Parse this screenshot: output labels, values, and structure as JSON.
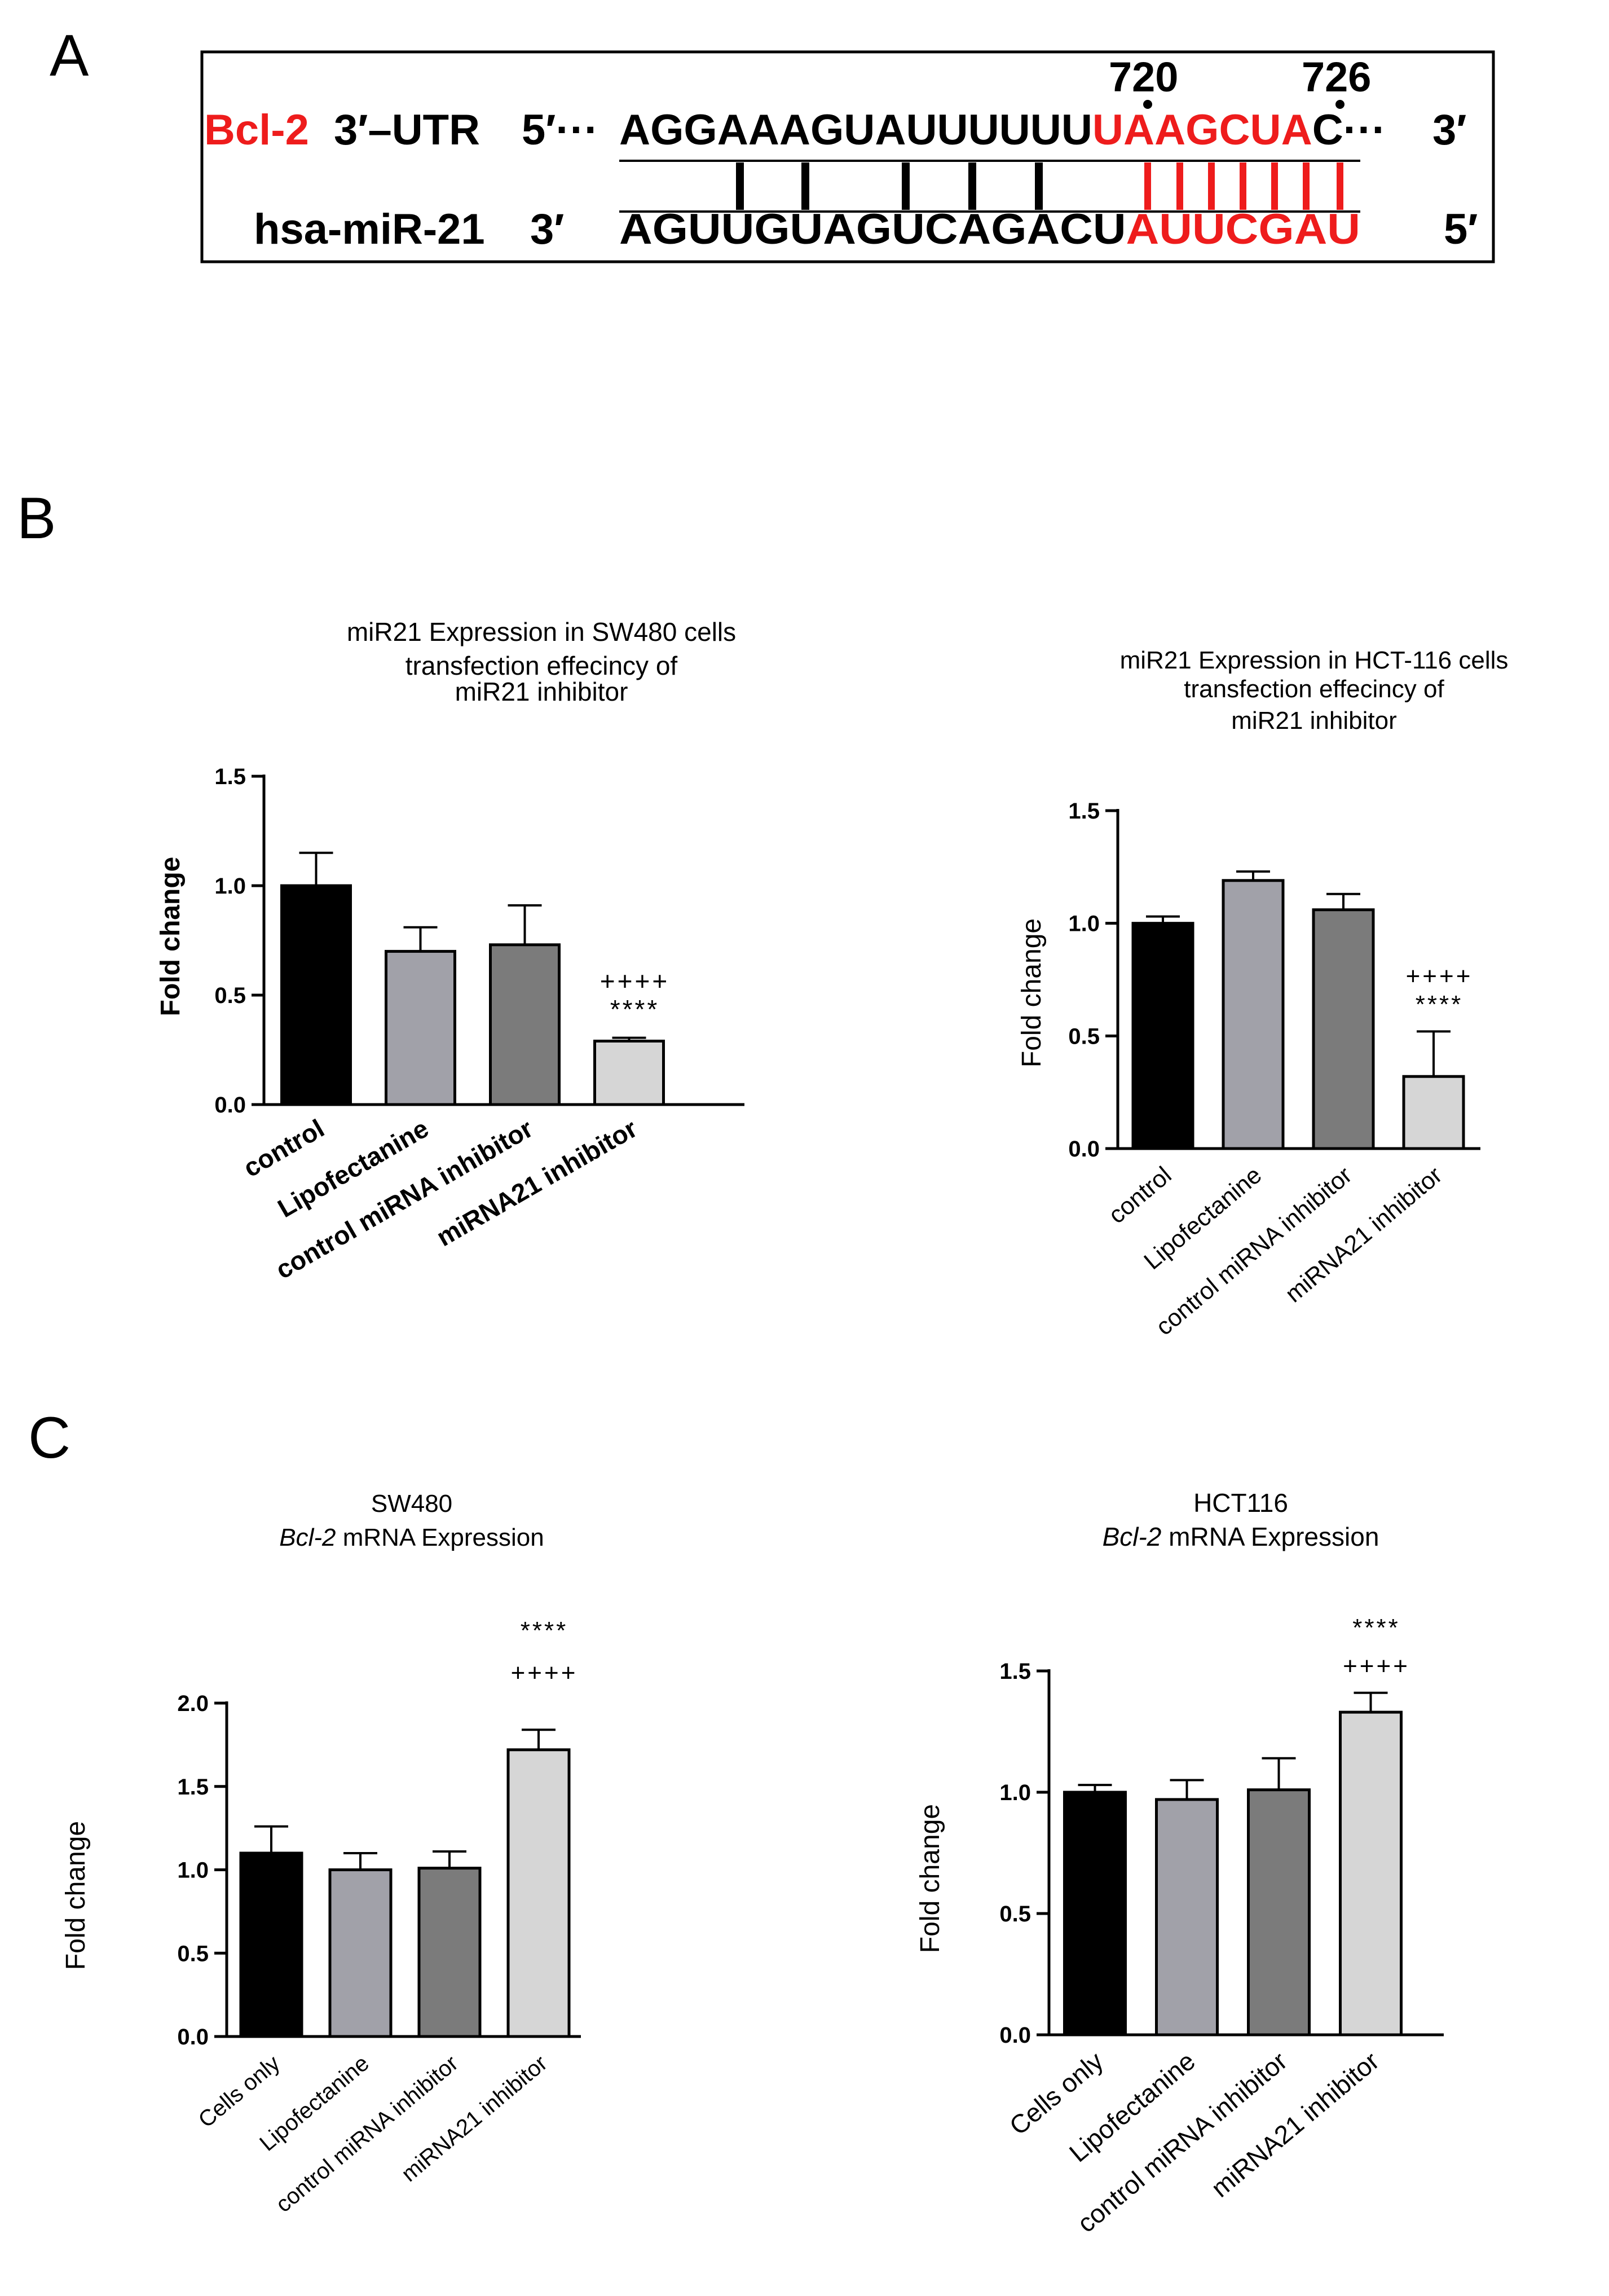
{
  "panel_labels": [
    "A",
    "B",
    "C"
  ],
  "panel_a": {
    "positions": [
      "720",
      "726"
    ],
    "bcl2_label": "Bcl-2",
    "utr_label": "3′–UTR",
    "top_five_prime": "5′···",
    "top_seq_black": "AGGAAAGUAUUUUUU",
    "top_seq_red": "UAAGCUA",
    "top_seq_tail": "C···",
    "top_three_prime": "3′",
    "mir_label": "hsa-miR-21",
    "bottom_three_prime": "3′",
    "bottom_seq_black": "AGUUGUAGUCAGACU",
    "bottom_seq_red": "AUUCGAU",
    "bottom_five_prime": "5′"
  },
  "colors": {
    "red": "#ee1c1c",
    "black": "#000000",
    "bar_fills": [
      "#000000",
      "#a1a1a9",
      "#7b7b7b",
      "#d6d6d6"
    ]
  },
  "chart_data": [
    {
      "type": "bar",
      "id": "b1",
      "title_lines": [
        "miR21 Expression in SW480 cells",
        "transfection effecincy of",
        "miR21 inhibitor"
      ],
      "ylabel": "Fold change",
      "ylim": [
        0,
        1.5
      ],
      "ticks": [
        "0.0",
        "0.5",
        "1.0",
        "1.5"
      ],
      "tick_values": [
        0,
        0.5,
        1.0,
        1.5
      ],
      "categories": [
        "control",
        "Lipofectanine",
        "control miRNA inhibitor",
        "miRNA21 inhibitor"
      ],
      "values": [
        1.0,
        0.7,
        0.73,
        0.29
      ],
      "errors": [
        0.15,
        0.11,
        0.18,
        0.015
      ],
      "annotations": [
        "++++",
        "****"
      ],
      "bold": true
    },
    {
      "type": "bar",
      "id": "b2",
      "title_lines": [
        "miR21 Expression in HCT-116 cells",
        "transfection effecincy of",
        "miR21 inhibitor"
      ],
      "ylabel": "Fold change",
      "ylim": [
        0,
        1.5
      ],
      "ticks": [
        "0.0",
        "0.5",
        "1.0",
        "1.5"
      ],
      "tick_values": [
        0,
        0.5,
        1.0,
        1.5
      ],
      "categories": [
        "control",
        "Lipofectanine",
        "control miRNA inhibitor",
        "miRNA21  inhibitor"
      ],
      "values": [
        1.0,
        1.19,
        1.06,
        0.32
      ],
      "errors": [
        0.03,
        0.04,
        0.07,
        0.2
      ],
      "annotations": [
        "++++",
        "****"
      ],
      "bold": false
    },
    {
      "type": "bar",
      "id": "c1",
      "title_line1": "SW480",
      "title_italic": "Bcl-2",
      "title_rest": " mRNA  Expression",
      "ylabel": "Fold change",
      "ylim": [
        0,
        2.0
      ],
      "ticks": [
        "0.0",
        "0.5",
        "1.0",
        "1.5",
        "2.0"
      ],
      "tick_values": [
        0,
        0.5,
        1.0,
        1.5,
        2.0
      ],
      "categories": [
        "Cells only",
        "Lipofectanine",
        "control miRNA inhibitor",
        "miRNA21 inhibitor"
      ],
      "values": [
        1.1,
        1.0,
        1.01,
        1.72
      ],
      "errors": [
        0.16,
        0.1,
        0.1,
        0.12
      ],
      "annotations": [
        "****",
        "++++"
      ],
      "bold": false
    },
    {
      "type": "bar",
      "id": "c2",
      "title_line1": "HCT116",
      "title_italic": "Bcl-2",
      "title_rest": " mRNA Expression",
      "ylabel": "Fold change",
      "ylim": [
        0,
        1.5
      ],
      "ticks": [
        "0.0",
        "0.5",
        "1.0",
        "1.5"
      ],
      "tick_values": [
        0,
        0.5,
        1.0,
        1.5
      ],
      "categories": [
        "Cells only",
        "Lipofectanine",
        "control miRNA inhibitor",
        "miRNA21 inhibitor"
      ],
      "values": [
        1.0,
        0.97,
        1.01,
        1.33
      ],
      "errors": [
        0.03,
        0.08,
        0.13,
        0.08
      ],
      "annotations": [
        "****",
        "++++"
      ],
      "bold": false
    }
  ]
}
